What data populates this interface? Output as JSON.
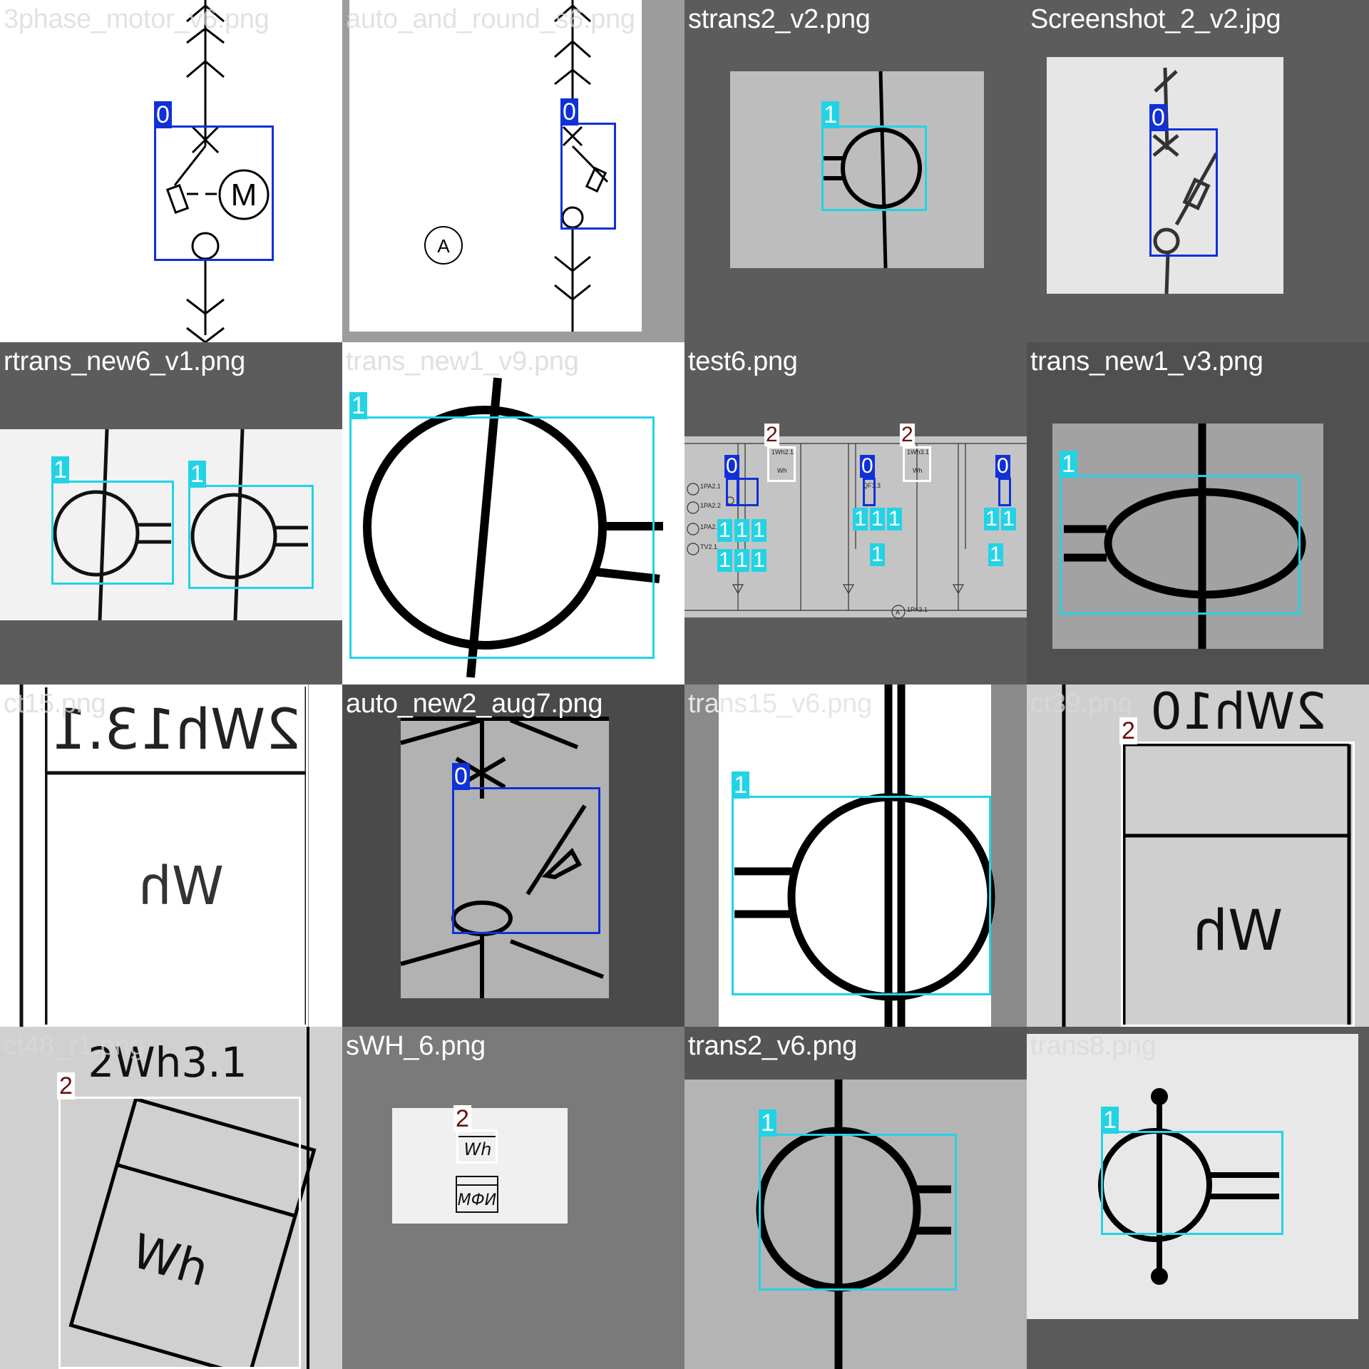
{
  "class_colors": {
    "0": "#1030d8",
    "1": "#22d3e6",
    "2": "#ffffff"
  },
  "tiles": [
    {
      "filename": "3phase_motor_v6.png",
      "labels": [
        "0"
      ],
      "symbol_text": "M"
    },
    {
      "filename": "auto_and_round_s6.png",
      "labels": [
        "0"
      ],
      "symbol_text": "A"
    },
    {
      "filename": "strans2_v2.png",
      "labels": [
        "1"
      ]
    },
    {
      "filename": "Screenshot_2_v2.jpg",
      "labels": [
        "0"
      ]
    },
    {
      "filename": "rtrans_new6_v1.png",
      "labels": [
        "1",
        "1"
      ]
    },
    {
      "filename": "trans_new1_v9.png",
      "labels": [
        "1"
      ]
    },
    {
      "filename": "test6.png",
      "labels": [
        "2",
        "2",
        "0",
        "0",
        "0",
        "1"
      ],
      "drawing_text": [
        "1Wh2.1",
        "Wh",
        "1Wh3.1",
        "Wh",
        "1PA2.1",
        "1PA2.2",
        "1PA2.3",
        "TV2.1",
        "QF1.3",
        "1PA3.1",
        "A"
      ]
    },
    {
      "filename": "trans_new1_v3.png",
      "labels": [
        "1"
      ]
    },
    {
      "filename": "ct15.png",
      "labels": [
        "2"
      ],
      "drawing_text": [
        "2Wh13.1",
        "Wh"
      ]
    },
    {
      "filename": "auto_new2_aug7.png",
      "labels": [
        "0"
      ]
    },
    {
      "filename": "trans15_v6.png",
      "labels": [
        "1"
      ]
    },
    {
      "filename": "ct39.png",
      "labels": [
        "2"
      ],
      "drawing_text": [
        "2Wh10",
        "Wh"
      ]
    },
    {
      "filename": "ct48_r1.png",
      "labels": [
        "2"
      ],
      "drawing_text": [
        "2Wh3.1",
        "Wh"
      ]
    },
    {
      "filename": "sWH_6.png",
      "labels": [
        "2"
      ],
      "drawing_text": [
        "Wh",
        "МФИ"
      ]
    },
    {
      "filename": "trans2_v6.png",
      "labels": [
        "1"
      ]
    },
    {
      "filename": "trans8.png",
      "labels": [
        "1"
      ]
    }
  ]
}
